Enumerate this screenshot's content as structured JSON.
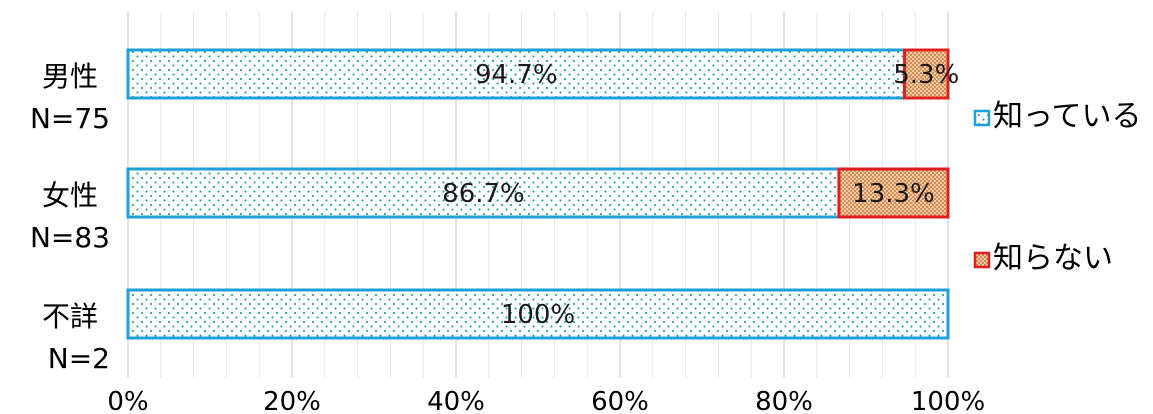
{
  "chart_data": {
    "type": "bar",
    "orientation": "horizontal",
    "stacked": true,
    "categories": [
      {
        "name": "男性",
        "n": "N=75"
      },
      {
        "name": "女性",
        "n": "N=83"
      },
      {
        "name": "不詳",
        "n": "N=2"
      }
    ],
    "series": [
      {
        "name": "知っている",
        "values": [
          94.7,
          86.7,
          100
        ],
        "labels": [
          "94.7%",
          "86.7%",
          "100%"
        ],
        "color": "#1EA0D8",
        "dot_color": "#2FA89B"
      },
      {
        "name": "知らない",
        "values": [
          5.3,
          13.3,
          0
        ],
        "labels": [
          "5.3%",
          "13.3%",
          ""
        ],
        "color": "#E02020",
        "dot_color": "#B8651E"
      }
    ],
    "xaxis": {
      "min": 0,
      "max": 100,
      "ticks": [
        "0%",
        "20%",
        "40%",
        "60%",
        "80%",
        "100%"
      ]
    },
    "grid": true,
    "legend_position": "right"
  }
}
